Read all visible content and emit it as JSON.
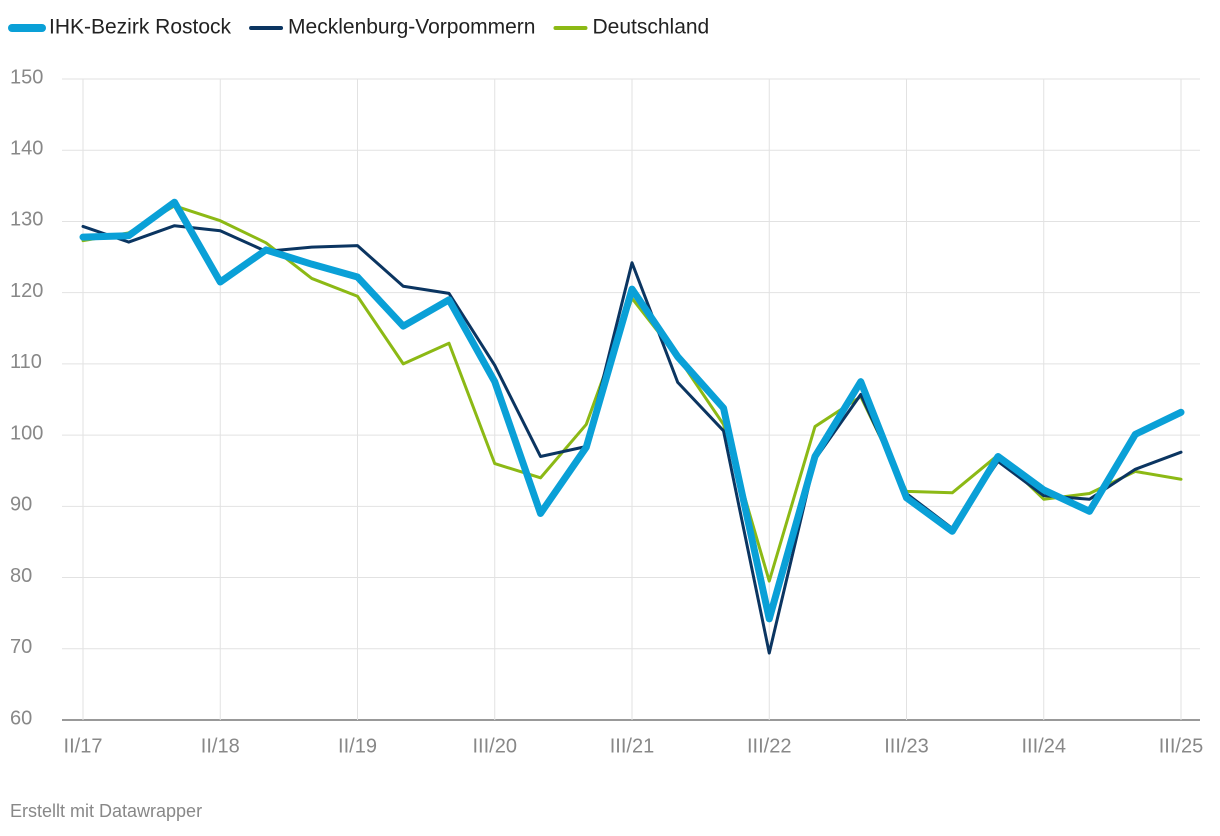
{
  "chart_data": {
    "type": "line",
    "categories": [
      "II/17",
      null,
      null,
      "II/18",
      null,
      null,
      "II/19",
      null,
      null,
      "III/20",
      null,
      null,
      "III/21",
      null,
      null,
      "III/22",
      null,
      null,
      "III/23",
      null,
      null,
      "III/24",
      null,
      null,
      "III/25"
    ],
    "series": [
      {
        "name": "IHK-Bezirk Rostock",
        "color": "#0aa0d7",
        "width": 7,
        "values": [
          127.8,
          128,
          132.7,
          121.5,
          126,
          124,
          122.2,
          115.3,
          119,
          107.5,
          89,
          98.3,
          120.5,
          111,
          103.8,
          74.2,
          97,
          107.5,
          91.2,
          86.5,
          97,
          92.3,
          89.3,
          100.1,
          103.2
        ]
      },
      {
        "name": "Mecklenburg-Vorpommern",
        "color": "#0b3561",
        "width": 3,
        "values": [
          129.3,
          127.1,
          129.4,
          128.7,
          125.8,
          126.4,
          126.6,
          120.9,
          119.9,
          109.8,
          97,
          98.4,
          124.2,
          107.4,
          100.6,
          69.4,
          96.6,
          105.7,
          91.8,
          86.9,
          96.3,
          91.5,
          91,
          95.2,
          97.6
        ]
      },
      {
        "name": "Deutschland",
        "color": "#8cb915",
        "width": 3,
        "values": [
          127.3,
          128.4,
          132.2,
          130.1,
          127,
          122,
          119.5,
          110,
          112.9,
          96,
          94,
          101.5,
          119.2,
          111,
          101.5,
          79.5,
          101.2,
          105.4,
          92.1,
          91.9,
          97.2,
          91,
          91.8,
          94.9,
          93.8
        ]
      }
    ],
    "ylim": [
      60,
      150
    ],
    "yticks": [
      60,
      70,
      80,
      90,
      100,
      110,
      120,
      130,
      140,
      150
    ],
    "grid": true,
    "legend": "top-left",
    "footer": "Erstellt mit Datawrapper"
  }
}
